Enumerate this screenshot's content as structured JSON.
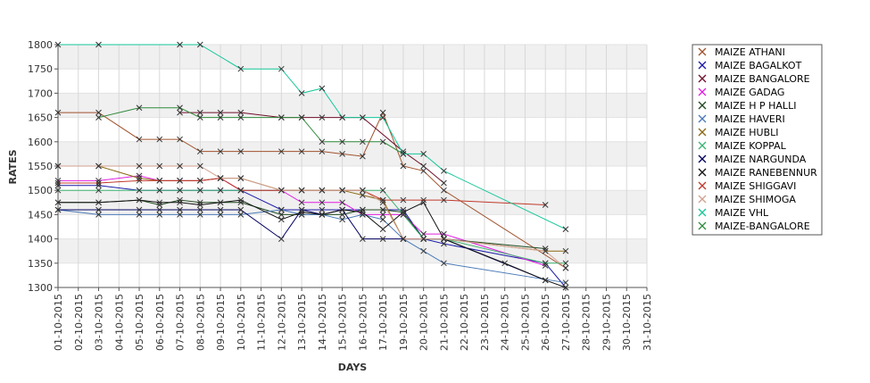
{
  "chart_data": {
    "type": "line",
    "title": "",
    "xlabel": "DAYS",
    "ylabel": "RATES",
    "ylim": [
      1300,
      1800
    ],
    "yticks": [
      1300,
      1350,
      1400,
      1450,
      1500,
      1550,
      1600,
      1650,
      1700,
      1750,
      1800
    ],
    "x": [
      "01-10-2015",
      "02-10-2015",
      "03-10-2015",
      "04-10-2015",
      "05-10-2015",
      "06-10-2015",
      "07-10-2015",
      "08-10-2015",
      "09-10-2015",
      "10-10-2015",
      "11-10-2015",
      "12-10-2015",
      "13-10-2015",
      "14-10-2015",
      "15-10-2015",
      "16-10-2015",
      "17-10-2015",
      "19-10-2015",
      "20-10-2015",
      "21-10-2015",
      "22-10-2015",
      "23-10-2015",
      "24-10-2015",
      "25-10-2015",
      "26-10-2015",
      "27-10-2015",
      "28-10-2015",
      "29-10-2015",
      "30-10-2015",
      "31-10-2015"
    ],
    "grid": "horizontal alternating bands",
    "legend_position": "right",
    "series": [
      {
        "name": "MAIZE ATHANI",
        "color": "#a0522d",
        "points": [
          [
            "01-10-2015",
            1660
          ],
          [
            "03-10-2015",
            1660
          ],
          [
            "05-10-2015",
            1605
          ],
          [
            "06-10-2015",
            1605
          ],
          [
            "07-10-2015",
            1605
          ],
          [
            "08-10-2015",
            1580
          ],
          [
            "09-10-2015",
            1580
          ],
          [
            "10-10-2015",
            1580
          ],
          [
            "12-10-2015",
            1580
          ],
          [
            "13-10-2015",
            1580
          ],
          [
            "14-10-2015",
            1580
          ],
          [
            "15-10-2015",
            1575
          ],
          [
            "16-10-2015",
            1570
          ],
          [
            "17-10-2015",
            1660
          ],
          [
            "19-10-2015",
            1550
          ],
          [
            "20-10-2015",
            1540
          ],
          [
            "21-10-2015",
            1500
          ],
          [
            "27-10-2015",
            1340
          ]
        ]
      },
      {
        "name": "MAIZE BAGALKOT",
        "color": "#1a1aa8",
        "points": [
          [
            "01-10-2015",
            1510
          ],
          [
            "03-10-2015",
            1510
          ],
          [
            "05-10-2015",
            1500
          ],
          [
            "06-10-2015",
            1500
          ],
          [
            "07-10-2015",
            1500
          ],
          [
            "08-10-2015",
            1500
          ],
          [
            "09-10-2015",
            1500
          ],
          [
            "10-10-2015",
            1500
          ],
          [
            "12-10-2015",
            1460
          ],
          [
            "13-10-2015",
            1460
          ],
          [
            "14-10-2015",
            1460
          ],
          [
            "15-10-2015",
            1460
          ],
          [
            "16-10-2015",
            1460
          ],
          [
            "17-10-2015",
            1460
          ],
          [
            "19-10-2015",
            1460
          ],
          [
            "20-10-2015",
            1400
          ],
          [
            "21-10-2015",
            1390
          ],
          [
            "26-10-2015",
            1350
          ],
          [
            "27-10-2015",
            1300
          ]
        ]
      },
      {
        "name": "MAIZE BANGALORE",
        "color": "#6e0f2a",
        "points": [
          [
            "07-10-2015",
            1660
          ],
          [
            "08-10-2015",
            1660
          ],
          [
            "09-10-2015",
            1660
          ],
          [
            "10-10-2015",
            1660
          ],
          [
            "12-10-2015",
            1650
          ],
          [
            "13-10-2015",
            1650
          ],
          [
            "14-10-2015",
            1650
          ],
          [
            "15-10-2015",
            1650
          ],
          [
            "16-10-2015",
            1650
          ],
          [
            "19-10-2015",
            1580
          ],
          [
            "20-10-2015",
            1550
          ],
          [
            "21-10-2015",
            1515
          ]
        ]
      },
      {
        "name": "MAIZE GADAG",
        "color": "#e11ee1",
        "points": [
          [
            "01-10-2015",
            1520
          ],
          [
            "03-10-2015",
            1520
          ],
          [
            "05-10-2015",
            1530
          ],
          [
            "06-10-2015",
            1520
          ],
          [
            "07-10-2015",
            1520
          ],
          [
            "08-10-2015",
            1520
          ],
          [
            "09-10-2015",
            1525
          ],
          [
            "10-10-2015",
            1500
          ],
          [
            "12-10-2015",
            1500
          ],
          [
            "13-10-2015",
            1475
          ],
          [
            "14-10-2015",
            1475
          ],
          [
            "15-10-2015",
            1475
          ],
          [
            "16-10-2015",
            1450
          ],
          [
            "17-10-2015",
            1450
          ],
          [
            "19-10-2015",
            1450
          ],
          [
            "20-10-2015",
            1410
          ],
          [
            "21-10-2015",
            1410
          ],
          [
            "26-10-2015",
            1345
          ]
        ]
      },
      {
        "name": "MAIZE H P HALLI",
        "color": "#1f4a1f",
        "points": [
          [
            "01-10-2015",
            1475
          ],
          [
            "03-10-2015",
            1475
          ],
          [
            "05-10-2015",
            1480
          ],
          [
            "06-10-2015",
            1470
          ],
          [
            "07-10-2015",
            1480
          ],
          [
            "08-10-2015",
            1475
          ],
          [
            "09-10-2015",
            1475
          ],
          [
            "10-10-2015",
            1475
          ],
          [
            "12-10-2015",
            1450
          ],
          [
            "13-10-2015",
            1450
          ],
          [
            "14-10-2015",
            1450
          ],
          [
            "15-10-2015",
            1450
          ],
          [
            "16-10-2015",
            1460
          ],
          [
            "17-10-2015",
            1460
          ],
          [
            "19-10-2015",
            1455
          ],
          [
            "20-10-2015",
            1400
          ],
          [
            "21-10-2015",
            1400
          ],
          [
            "26-10-2015",
            1380
          ]
        ]
      },
      {
        "name": "MAIZE HAVERI",
        "color": "#4a7ab8",
        "points": [
          [
            "01-10-2015",
            1460
          ],
          [
            "03-10-2015",
            1450
          ],
          [
            "05-10-2015",
            1450
          ],
          [
            "06-10-2015",
            1450
          ],
          [
            "07-10-2015",
            1450
          ],
          [
            "08-10-2015",
            1450
          ],
          [
            "09-10-2015",
            1450
          ],
          [
            "10-10-2015",
            1450
          ],
          [
            "12-10-2015",
            1460
          ],
          [
            "13-10-2015",
            1450
          ],
          [
            "14-10-2015",
            1450
          ],
          [
            "15-10-2015",
            1440
          ],
          [
            "16-10-2015",
            1450
          ],
          [
            "17-10-2015",
            1440
          ],
          [
            "19-10-2015",
            1400
          ],
          [
            "20-10-2015",
            1375
          ],
          [
            "21-10-2015",
            1350
          ],
          [
            "27-10-2015",
            1310
          ]
        ]
      },
      {
        "name": "MAIZE HUBLI",
        "color": "#8b6914",
        "points": [
          [
            "01-10-2015",
            1550
          ],
          [
            "03-10-2015",
            1550
          ],
          [
            "05-10-2015",
            1525
          ],
          [
            "06-10-2015",
            1520
          ],
          [
            "07-10-2015",
            1520
          ],
          [
            "08-10-2015",
            1520
          ],
          [
            "09-10-2015",
            1525
          ],
          [
            "10-10-2015",
            1525
          ],
          [
            "12-10-2015",
            1500
          ],
          [
            "13-10-2015",
            1500
          ],
          [
            "14-10-2015",
            1500
          ],
          [
            "15-10-2015",
            1500
          ],
          [
            "16-10-2015",
            1490
          ],
          [
            "17-10-2015",
            1480
          ],
          [
            "19-10-2015",
            1400
          ],
          [
            "20-10-2015",
            1400
          ],
          [
            "21-10-2015",
            1400
          ],
          [
            "26-10-2015",
            1375
          ],
          [
            "27-10-2015",
            1375
          ]
        ]
      },
      {
        "name": "MAIZE KOPPAL",
        "color": "#3cb371",
        "points": [
          [
            "01-10-2015",
            1500
          ],
          [
            "03-10-2015",
            1500
          ],
          [
            "05-10-2015",
            1500
          ],
          [
            "06-10-2015",
            1500
          ],
          [
            "07-10-2015",
            1500
          ],
          [
            "08-10-2015",
            1500
          ],
          [
            "09-10-2015",
            1500
          ],
          [
            "10-10-2015",
            1500
          ],
          [
            "12-10-2015",
            1500
          ],
          [
            "13-10-2015",
            1500
          ],
          [
            "14-10-2015",
            1500
          ],
          [
            "15-10-2015",
            1500
          ],
          [
            "16-10-2015",
            1500
          ],
          [
            "17-10-2015",
            1500
          ],
          [
            "19-10-2015",
            1450
          ],
          [
            "20-10-2015",
            1400
          ],
          [
            "21-10-2015",
            1400
          ],
          [
            "26-10-2015",
            1350
          ],
          [
            "27-10-2015",
            1350
          ]
        ]
      },
      {
        "name": "MAIZE NARGUNDA",
        "color": "#000060",
        "points": [
          [
            "01-10-2015",
            1460
          ],
          [
            "03-10-2015",
            1460
          ],
          [
            "05-10-2015",
            1460
          ],
          [
            "06-10-2015",
            1460
          ],
          [
            "07-10-2015",
            1460
          ],
          [
            "08-10-2015",
            1460
          ],
          [
            "09-10-2015",
            1460
          ],
          [
            "10-10-2015",
            1460
          ],
          [
            "12-10-2015",
            1400
          ],
          [
            "13-10-2015",
            1460
          ],
          [
            "14-10-2015",
            1450
          ],
          [
            "15-10-2015",
            1460
          ],
          [
            "16-10-2015",
            1400
          ],
          [
            "17-10-2015",
            1400
          ],
          [
            "19-10-2015",
            1400
          ],
          [
            "20-10-2015",
            1400
          ],
          [
            "21-10-2015",
            1400
          ],
          [
            "26-10-2015",
            1315
          ]
        ]
      },
      {
        "name": "MAIZE RANEBENNUR",
        "color": "#111111",
        "points": [
          [
            "01-10-2015",
            1475
          ],
          [
            "03-10-2015",
            1475
          ],
          [
            "05-10-2015",
            1480
          ],
          [
            "06-10-2015",
            1475
          ],
          [
            "07-10-2015",
            1475
          ],
          [
            "08-10-2015",
            1470
          ],
          [
            "09-10-2015",
            1475
          ],
          [
            "10-10-2015",
            1480
          ],
          [
            "12-10-2015",
            1440
          ],
          [
            "13-10-2015",
            1455
          ],
          [
            "14-10-2015",
            1450
          ],
          [
            "15-10-2015",
            1460
          ],
          [
            "16-10-2015",
            1455
          ],
          [
            "17-10-2015",
            1420
          ],
          [
            "19-10-2015",
            1455
          ],
          [
            "20-10-2015",
            1475
          ],
          [
            "21-10-2015",
            1400
          ],
          [
            "24-10-2015",
            1350
          ],
          [
            "26-10-2015",
            1315
          ],
          [
            "27-10-2015",
            1300
          ]
        ]
      },
      {
        "name": "MAIZE SHIGGAVI",
        "color": "#c0392b",
        "points": [
          [
            "01-10-2015",
            1515
          ],
          [
            "03-10-2015",
            1515
          ],
          [
            "05-10-2015",
            1520
          ],
          [
            "06-10-2015",
            1520
          ],
          [
            "07-10-2015",
            1520
          ],
          [
            "08-10-2015",
            1520
          ],
          [
            "09-10-2015",
            1525
          ],
          [
            "10-10-2015",
            1500
          ],
          [
            "12-10-2015",
            1500
          ],
          [
            "13-10-2015",
            1500
          ],
          [
            "14-10-2015",
            1500
          ],
          [
            "15-10-2015",
            1500
          ],
          [
            "16-10-2015",
            1500
          ],
          [
            "17-10-2015",
            1480
          ],
          [
            "19-10-2015",
            1480
          ],
          [
            "20-10-2015",
            1480
          ],
          [
            "21-10-2015",
            1480
          ],
          [
            "26-10-2015",
            1470
          ]
        ]
      },
      {
        "name": "MAIZE SHIMOGA",
        "color": "#d2a090",
        "points": [
          [
            "01-10-2015",
            1550
          ],
          [
            "03-10-2015",
            1550
          ],
          [
            "05-10-2015",
            1550
          ],
          [
            "06-10-2015",
            1550
          ],
          [
            "07-10-2015",
            1550
          ],
          [
            "08-10-2015",
            1550
          ],
          [
            "09-10-2015",
            1525
          ],
          [
            "10-10-2015",
            1525
          ],
          [
            "12-10-2015",
            1500
          ],
          [
            "13-10-2015",
            1500
          ],
          [
            "14-10-2015",
            1500
          ],
          [
            "15-10-2015",
            1500
          ],
          [
            "16-10-2015",
            1500
          ],
          [
            "17-10-2015",
            1475
          ],
          [
            "19-10-2015",
            1400
          ],
          [
            "20-10-2015",
            1400
          ],
          [
            "21-10-2015",
            1400
          ],
          [
            "26-10-2015",
            1375
          ],
          [
            "27-10-2015",
            1340
          ]
        ]
      },
      {
        "name": "MAIZE VHL",
        "color": "#16c79a",
        "points": [
          [
            "01-10-2015",
            1800
          ],
          [
            "03-10-2015",
            1800
          ],
          [
            "07-10-2015",
            1800
          ],
          [
            "08-10-2015",
            1800
          ],
          [
            "10-10-2015",
            1750
          ],
          [
            "12-10-2015",
            1750
          ],
          [
            "13-10-2015",
            1700
          ],
          [
            "14-10-2015",
            1710
          ],
          [
            "15-10-2015",
            1650
          ],
          [
            "16-10-2015",
            1650
          ],
          [
            "17-10-2015",
            1650
          ],
          [
            "19-10-2015",
            1575
          ],
          [
            "20-10-2015",
            1575
          ],
          [
            "21-10-2015",
            1540
          ],
          [
            "27-10-2015",
            1420
          ]
        ]
      },
      {
        "name": "MAIZE-BANGALORE",
        "color": "#2e8b3a",
        "points": [
          [
            "03-10-2015",
            1650
          ],
          [
            "05-10-2015",
            1670
          ],
          [
            "07-10-2015",
            1670
          ],
          [
            "08-10-2015",
            1650
          ],
          [
            "09-10-2015",
            1650
          ],
          [
            "10-10-2015",
            1650
          ],
          [
            "12-10-2015",
            1650
          ],
          [
            "13-10-2015",
            1650
          ],
          [
            "14-10-2015",
            1600
          ],
          [
            "15-10-2015",
            1600
          ],
          [
            "16-10-2015",
            1600
          ],
          [
            "17-10-2015",
            1600
          ],
          [
            "19-10-2015",
            1575
          ]
        ]
      }
    ]
  }
}
